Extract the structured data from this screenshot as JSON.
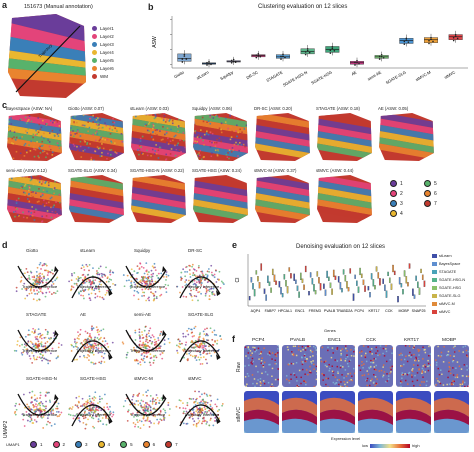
{
  "panel_a": {
    "label": "a",
    "title": "151673 (Manual annotation)",
    "legend": [
      {
        "name": "Layer1",
        "color": "#6a3d9a"
      },
      {
        "name": "Layer2",
        "color": "#e3447a"
      },
      {
        "name": "Layer3",
        "color": "#3a7fb8"
      },
      {
        "name": "Layer4",
        "color": "#e9b730"
      },
      {
        "name": "Layer5",
        "color": "#58b26b"
      },
      {
        "name": "Layer6",
        "color": "#e9842f"
      },
      {
        "name": "WM",
        "color": "#c23a2f"
      }
    ],
    "annotation_text": "Trajectory"
  },
  "panel_b": {
    "label": "b",
    "title": "Clustering evaluation on 12 slices",
    "ylabel": "ASW",
    "chart_data": {
      "type": "box",
      "title": "Clustering evaluation on 12 slices",
      "ylabel": "ASW",
      "ylim": [
        -0.05,
        0.65
      ],
      "categories": [
        "Giotto",
        "stLearn",
        "Squidpy",
        "DR-SC",
        "STAGATE",
        "SGATE-HSG-N",
        "SGATE-HSG",
        "AE",
        "semi-AE",
        "SGATE-SLG",
        "stMVC-M",
        "stMVC"
      ],
      "colors": [
        "#7fa7d0",
        "#3f6fa8",
        "#a9a2d1",
        "#c93d7c",
        "#5a9fd4",
        "#5bb58a",
        "#3fa47a",
        "#d23c8c",
        "#7cc97a",
        "#4a93d1",
        "#f0a23a",
        "#e2474c"
      ],
      "medians": [
        0.08,
        0.01,
        0.04,
        0.12,
        0.1,
        0.17,
        0.2,
        0.02,
        0.1,
        0.32,
        0.33,
        0.37
      ],
      "q1": [
        0.04,
        0.0,
        0.03,
        0.1,
        0.08,
        0.14,
        0.16,
        0.0,
        0.08,
        0.28,
        0.29,
        0.33
      ],
      "q3": [
        0.14,
        0.02,
        0.05,
        0.13,
        0.13,
        0.21,
        0.24,
        0.04,
        0.12,
        0.35,
        0.36,
        0.4
      ]
    }
  },
  "panel_c": {
    "label": "c",
    "row1": [
      "BayesSpace (ASW: NA)",
      "Giotto (ASW: 0.07)",
      "stLearn (ASW: 0.03)",
      "Squidpy (ASW: 0.06)",
      "DR-SC (ASW: 0.20)",
      "STAGATE (ASW: 0.18)",
      "AE (ASW: 0.05)"
    ],
    "row2": [
      "semi-AE (ASW: 0.12)",
      "SGATE-SLG (ASW: 0.34)",
      "SGATE-HSG-N (ASW: 0.22)",
      "SGATE-HSG (ASW: 0.24)",
      "stMVC-M (ASW: 0.37)",
      "stMVC (ASW: 0.44)"
    ],
    "cluster_legend": [
      "1",
      "2",
      "3",
      "4",
      "5",
      "6",
      "7"
    ]
  },
  "panel_d": {
    "label": "d",
    "methods": [
      "Giotto",
      "stLearn",
      "Squidpy",
      "DR-SC",
      "STAGATE",
      "AE",
      "semi-AE",
      "SGATE-SLG",
      "SGATE-HSG-N",
      "SGATE-HSG",
      "stMVC-M",
      "stMVC"
    ],
    "traj_label": "Trajectory inference",
    "axis_y": "UMAP2",
    "axis_x": "UMAP1",
    "legend": [
      "1",
      "2",
      "3",
      "4",
      "5",
      "6",
      "7"
    ]
  },
  "panel_e": {
    "label": "e",
    "title": "Denoising evaluation on 12 slices",
    "ylabel": "CI",
    "xlabel": "Genes",
    "genes": [
      "AQP4",
      "FABP7",
      "HPCAL1",
      "ENC1",
      "FREM3",
      "PVALB",
      "TRABD2A",
      "PCP4",
      "KRT17",
      "CCK",
      "MOBP",
      "SNAP25"
    ],
    "legend": [
      {
        "name": "stLearn",
        "color": "#3f4fa8"
      },
      {
        "name": "BayesSpace",
        "color": "#5f8fd0"
      },
      {
        "name": "STAGATE",
        "color": "#4aa3b8"
      },
      {
        "name": "SGATE-HSG-N",
        "color": "#56b38a"
      },
      {
        "name": "SGATE-HSG",
        "color": "#8ac26b"
      },
      {
        "name": "SGATE-SLG",
        "color": "#c9b44a"
      },
      {
        "name": "stMVC-M",
        "color": "#e08b3a"
      },
      {
        "name": "stMVC",
        "color": "#d8423c"
      }
    ]
  },
  "panel_f": {
    "label": "f",
    "genes": [
      "PCP4",
      "PVALB",
      "ENC1",
      "CCK",
      "KRT17",
      "MOBP"
    ],
    "row_labels": [
      "Raw",
      "stMVC"
    ],
    "colorbar_title": "Expression level",
    "colorbar_low": "low",
    "colorbar_high": "high"
  }
}
